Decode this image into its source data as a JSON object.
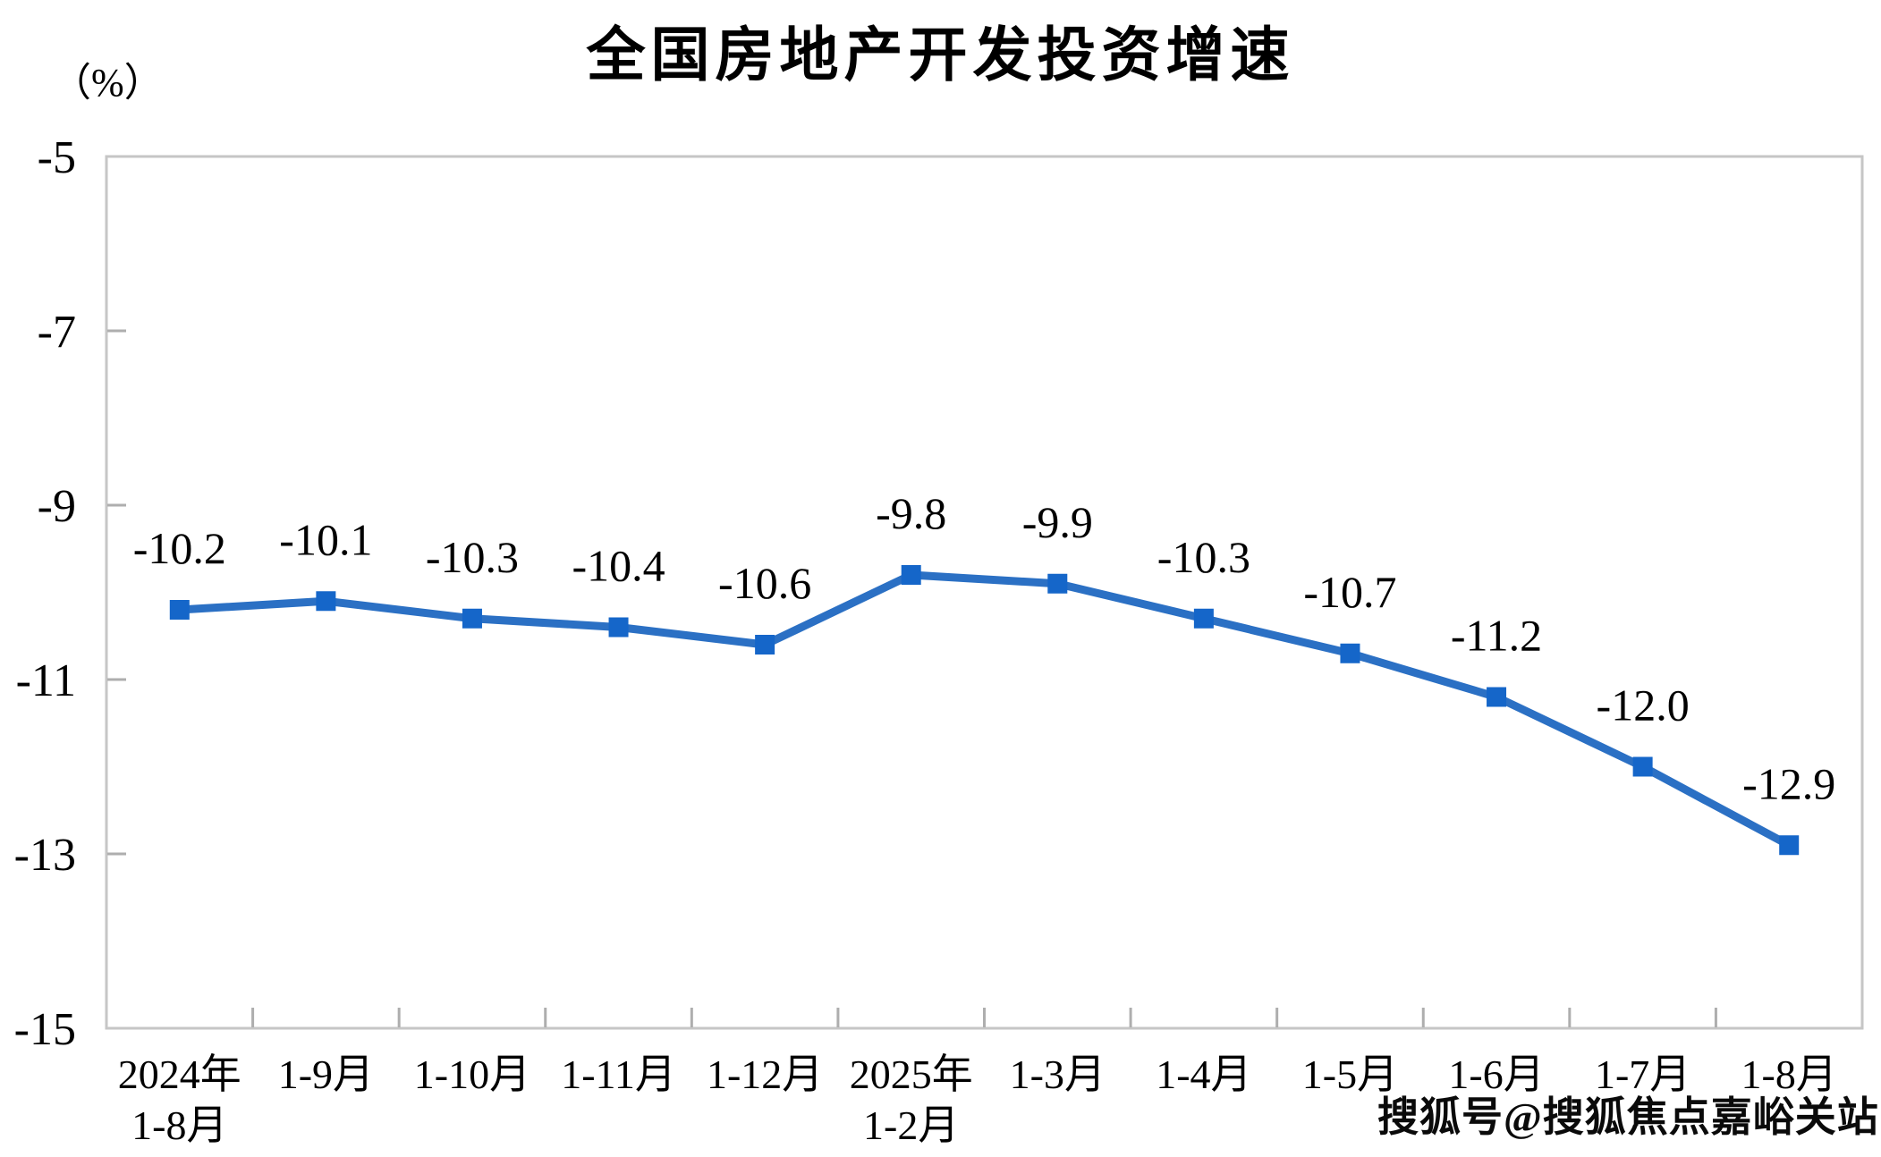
{
  "title": "全国房地产开发投资增速",
  "y_axis_unit": "（%）",
  "watermark": "搜狐号@搜狐焦点嘉峪关站",
  "chart_data": {
    "type": "line",
    "title": "全国房地产开发投资增速",
    "ylabel": "（%）",
    "categories": [
      [
        "2024年",
        "1-8月"
      ],
      [
        "1-9月"
      ],
      [
        "1-10月"
      ],
      [
        "1-11月"
      ],
      [
        "1-12月"
      ],
      [
        "2025年",
        "1-2月"
      ],
      [
        "1-3月"
      ],
      [
        "1-4月"
      ],
      [
        "1-5月"
      ],
      [
        "1-6月"
      ],
      [
        "1-7月"
      ],
      [
        "1-8月"
      ]
    ],
    "values": [
      -10.2,
      -10.1,
      -10.3,
      -10.4,
      -10.6,
      -9.8,
      -9.9,
      -10.3,
      -10.7,
      -11.2,
      -12.0,
      -12.9
    ],
    "data_labels": [
      "-10.2",
      "-10.1",
      "-10.3",
      "-10.4",
      "-10.6",
      "-9.8",
      "-9.9",
      "-10.3",
      "-10.7",
      "-11.2",
      "-12.0",
      "-12.9"
    ],
    "y_ticks": [
      -5,
      -7,
      -9,
      -11,
      -13,
      -15
    ],
    "ylim": [
      -15,
      -5
    ],
    "grid": false,
    "legend": "none",
    "marker": "square",
    "line_color": "#2b70c4",
    "marker_color": "#1566c9",
    "axis_color": "#c6c6c6",
    "tick_color": "#aeaeae",
    "text_color": "#000000"
  }
}
